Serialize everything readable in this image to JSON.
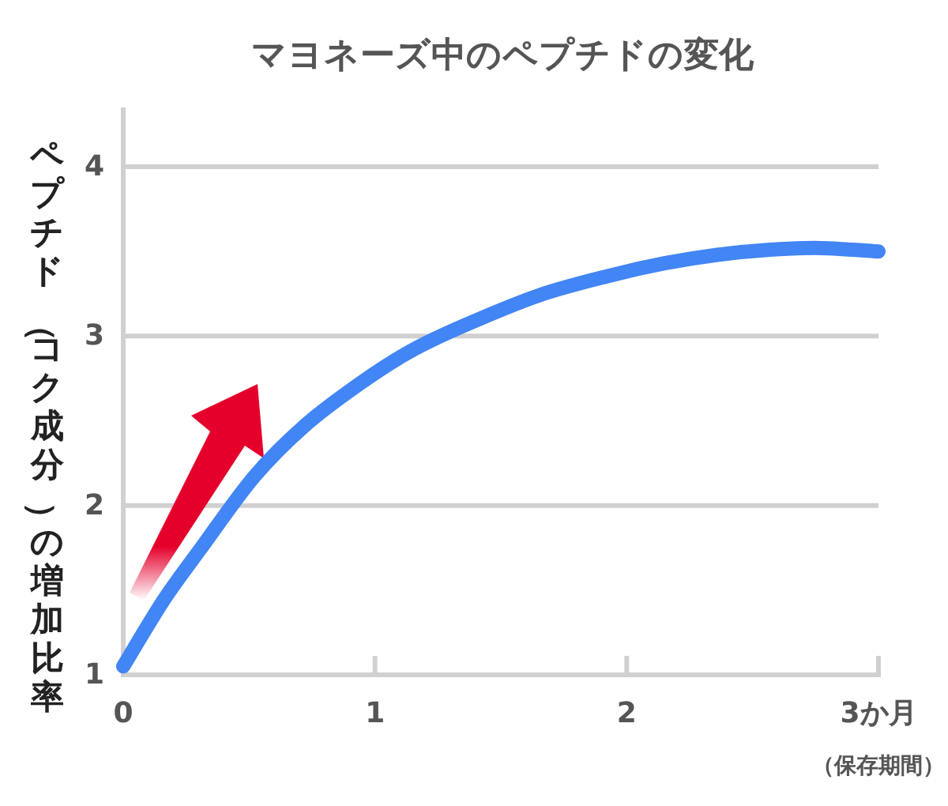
{
  "chart_data": {
    "type": "line",
    "title": "マヨネーズ中のペプチドの変化",
    "xlabel": "（保存期間）",
    "ylabel": "ペプチド（コク成分）の増加比率",
    "x": [
      0,
      0.16,
      0.31,
      0.52,
      0.72,
      0.94,
      1.14,
      1.35,
      1.65,
      1.94,
      2.15,
      2.36,
      2.57,
      2.77,
      3.0
    ],
    "series": [
      {
        "color": "#4285f4",
        "values": [
          1.05,
          1.44,
          1.75,
          2.17,
          2.47,
          2.72,
          2.91,
          3.06,
          3.24,
          3.36,
          3.43,
          3.48,
          3.51,
          3.52,
          3.5
        ]
      }
    ],
    "xlim": [
      0,
      3
    ],
    "ylim": [
      1,
      4.35
    ],
    "xticks": [
      0,
      1,
      2,
      {
        "value": 3,
        "label": "3か月"
      }
    ],
    "yticks": [
      1,
      2,
      3,
      4
    ],
    "grid": "y"
  }
}
